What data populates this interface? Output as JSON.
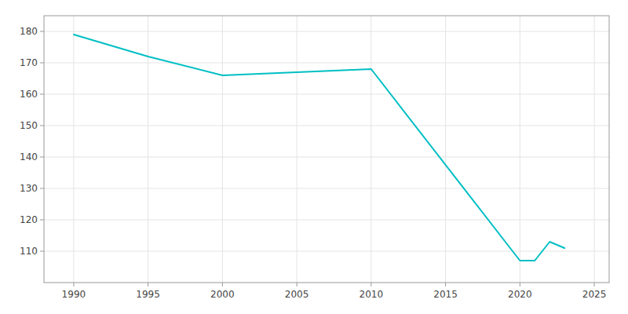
{
  "chart_data": {
    "type": "line",
    "x": [
      1990,
      1995,
      2000,
      2005,
      2010,
      2020,
      2021,
      2022,
      2023
    ],
    "values": [
      179,
      172,
      166,
      167,
      168,
      107,
      107,
      113,
      111
    ],
    "color": "#00BFC4",
    "xlim": [
      1988,
      2026
    ],
    "ylim": [
      100,
      185
    ],
    "xticks": [
      1990,
      1995,
      2000,
      2005,
      2010,
      2015,
      2020,
      2025
    ],
    "yticks": [
      110,
      120,
      130,
      140,
      150,
      160,
      170,
      180
    ],
    "grid": true
  }
}
